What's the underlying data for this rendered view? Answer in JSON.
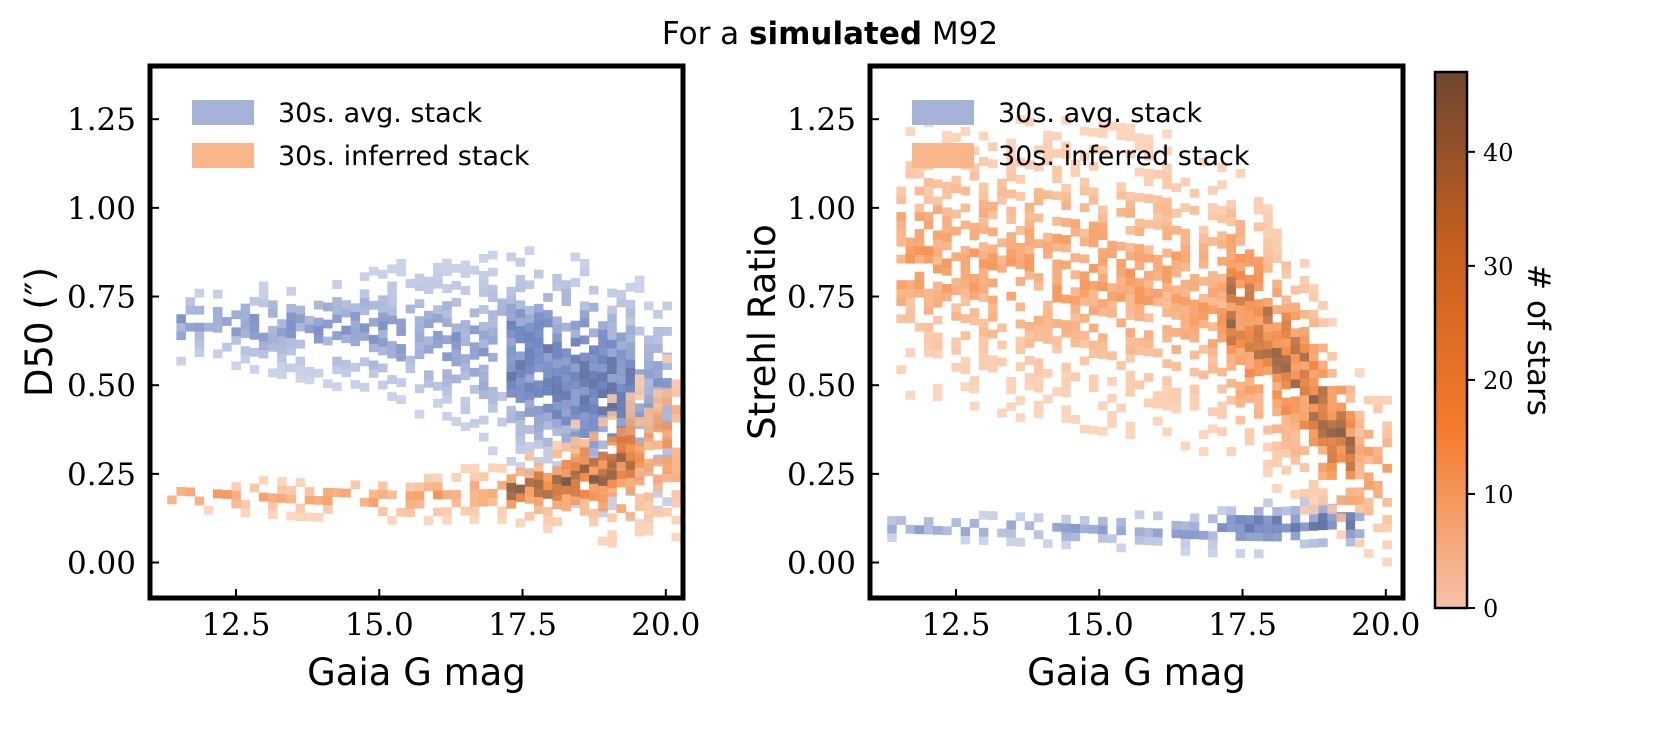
{
  "figure": {
    "title_prefix": "For a ",
    "title_bold": "simulated",
    "title_suffix": " M92"
  },
  "chart_data": [
    {
      "type": "heatmap",
      "title": "",
      "xlabel": "Gaia G mag",
      "ylabel": "D50 (″)",
      "xlim": [
        11.0,
        20.3
      ],
      "ylim": [
        -0.1,
        1.4
      ],
      "xticks": [
        "12.5",
        "15.0",
        "17.5",
        "20.0"
      ],
      "xtick_values": [
        12.5,
        15.0,
        17.5,
        20.0
      ],
      "yticks": [
        "0.00",
        "0.25",
        "0.50",
        "0.75",
        "1.00",
        "1.25"
      ],
      "ytick_values": [
        0.0,
        0.25,
        0.5,
        0.75,
        1.0,
        1.25
      ],
      "legend_position": "top-left",
      "series": [
        {
          "name": "30s. avg. stack",
          "color": "#5b74b8",
          "density_ridge": {
            "x": [
              12.0,
              14.0,
              16.0,
              17.5,
              18.5,
              19.5
            ],
            "y": [
              0.66,
              0.65,
              0.62,
              0.56,
              0.5,
              0.45
            ],
            "spread": [
              0.04,
              0.06,
              0.09,
              0.12,
              0.14,
              0.13
            ]
          }
        },
        {
          "name": "30s. inferred stack",
          "color": "#f47b2c",
          "density_ridge": {
            "x": [
              11.5,
              13.5,
              15.5,
              17.0,
              18.0,
              19.0,
              20.0
            ],
            "y": [
              0.18,
              0.17,
              0.17,
              0.19,
              0.21,
              0.25,
              0.32
            ],
            "spread": [
              0.015,
              0.02,
              0.025,
              0.03,
              0.05,
              0.08,
              0.1
            ]
          }
        }
      ]
    },
    {
      "type": "heatmap",
      "title": "",
      "xlabel": "Gaia G mag",
      "ylabel": "Strehl Ratio",
      "xlim": [
        11.0,
        20.3
      ],
      "ylim": [
        -0.1,
        1.4
      ],
      "xticks": [
        "12.5",
        "15.0",
        "17.5",
        "20.0"
      ],
      "xtick_values": [
        12.5,
        15.0,
        17.5,
        20.0
      ],
      "yticks": [
        "0.00",
        "0.25",
        "0.50",
        "0.75",
        "1.00",
        "1.25"
      ],
      "ytick_values": [
        0.0,
        0.25,
        0.5,
        0.75,
        1.0,
        1.25
      ],
      "legend_position": "top-left",
      "series": [
        {
          "name": "30s. avg. stack",
          "color": "#5b74b8",
          "density_ridge": {
            "x": [
              11.5,
              13.5,
              15.5,
              17.0,
              18.0,
              19.0
            ],
            "y": [
              0.09,
              0.085,
              0.08,
              0.08,
              0.09,
              0.1
            ],
            "spread": [
              0.012,
              0.015,
              0.02,
              0.025,
              0.03,
              0.03
            ]
          }
        },
        {
          "name": "30s. inferred stack",
          "color": "#f47b2c",
          "density_ridge": {
            "x": [
              12.0,
              14.0,
              16.0,
              17.5,
              18.5,
              19.5
            ],
            "y": [
              0.85,
              0.82,
              0.78,
              0.68,
              0.5,
              0.25
            ],
            "spread": [
              0.15,
              0.17,
              0.17,
              0.16,
              0.14,
              0.1
            ]
          }
        }
      ]
    },
    {
      "type": "colorbar",
      "label": "# of stars",
      "ticks": [
        "0",
        "10",
        "20",
        "30",
        "40"
      ],
      "tick_values": [
        0,
        10,
        20,
        30,
        40
      ],
      "range": [
        0,
        47
      ],
      "colors": [
        "#f6c2aa",
        "#f47b2c",
        "#c8601e",
        "#6e4630"
      ]
    }
  ]
}
